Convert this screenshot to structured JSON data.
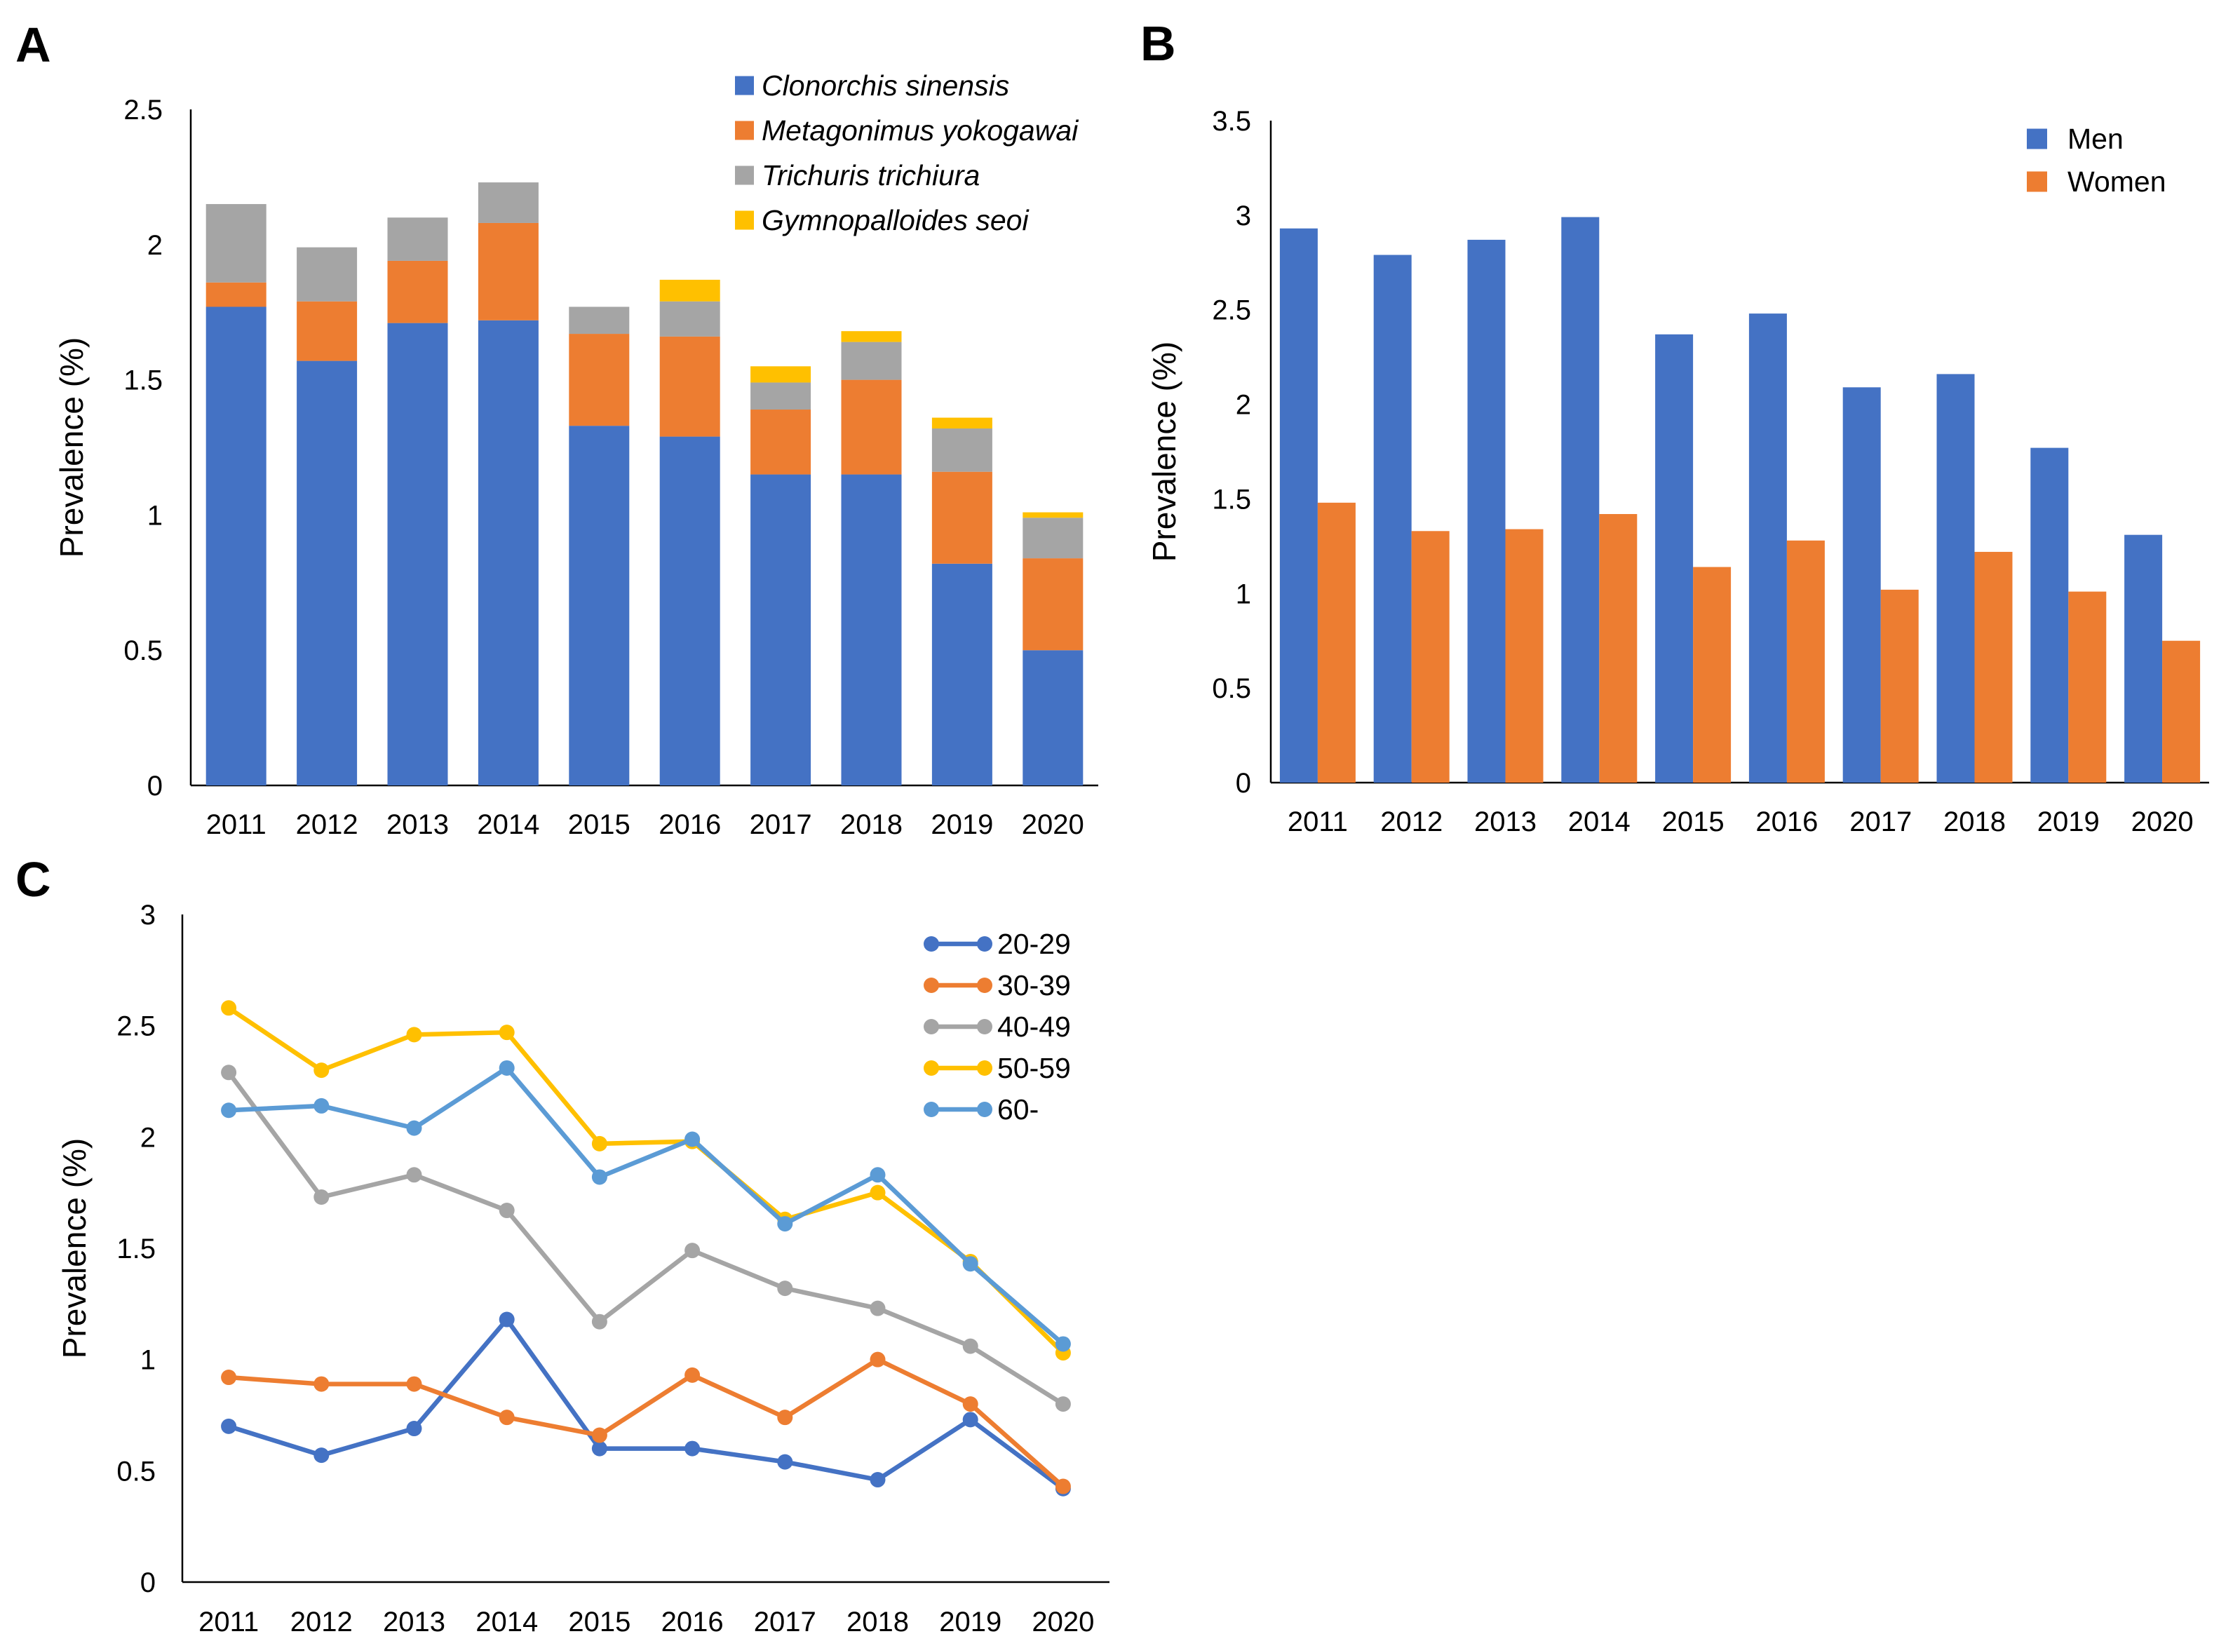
{
  "panels": {
    "A": {
      "label": "A"
    },
    "B": {
      "label": "B"
    },
    "C": {
      "label": "C"
    }
  },
  "colors": {
    "blue": "#4472C4",
    "orange": "#ED7D31",
    "gray": "#A5A5A5",
    "yellow": "#FFC000",
    "lightblue": "#5B9BD5"
  },
  "chart_data": [
    {
      "panel": "A",
      "type": "bar",
      "stacked": true,
      "categories": [
        "2011",
        "2012",
        "2013",
        "2014",
        "2015",
        "2016",
        "2017",
        "2018",
        "2019",
        "2020"
      ],
      "ylabel": "Prevalence (%)",
      "ylim": [
        0,
        2.5
      ],
      "yticks": [
        "0",
        "0.5",
        "1",
        "1.5",
        "2",
        "2.5"
      ],
      "legend_position": "top-right",
      "series": [
        {
          "name": "Clonorchis sinensis",
          "color": "#4472C4",
          "values": [
            1.77,
            1.57,
            1.71,
            1.72,
            1.33,
            1.29,
            1.15,
            1.15,
            0.82,
            0.5
          ]
        },
        {
          "name": "Metagonimus yokogawai",
          "color": "#ED7D31",
          "values": [
            0.09,
            0.22,
            0.23,
            0.36,
            0.34,
            0.37,
            0.24,
            0.35,
            0.34,
            0.34
          ]
        },
        {
          "name": "Trichuris trichiura",
          "color": "#A5A5A5",
          "values": [
            0.29,
            0.2,
            0.16,
            0.15,
            0.1,
            0.13,
            0.1,
            0.14,
            0.16,
            0.15
          ]
        },
        {
          "name": "Gymnopalloides seoi",
          "color": "#FFC000",
          "values": [
            0.0,
            0.0,
            0.0,
            0.0,
            0.0,
            0.08,
            0.06,
            0.04,
            0.04,
            0.02
          ]
        }
      ]
    },
    {
      "panel": "B",
      "type": "bar",
      "stacked": false,
      "categories": [
        "2011",
        "2012",
        "2013",
        "2014",
        "2015",
        "2016",
        "2017",
        "2018",
        "2019",
        "2020"
      ],
      "ylabel": "Prevalence (%)",
      "ylim": [
        0,
        3.5
      ],
      "yticks": [
        "0",
        "0.5",
        "1",
        "1.5",
        "2",
        "2.5",
        "3",
        "3.5"
      ],
      "legend_position": "top-right",
      "series": [
        {
          "name": "Men",
          "color": "#4472C4",
          "values": [
            2.93,
            2.79,
            2.87,
            2.99,
            2.37,
            2.48,
            2.09,
            2.16,
            1.77,
            1.31
          ]
        },
        {
          "name": "Women",
          "color": "#ED7D31",
          "values": [
            1.48,
            1.33,
            1.34,
            1.42,
            1.14,
            1.28,
            1.02,
            1.22,
            1.01,
            0.75
          ]
        }
      ]
    },
    {
      "panel": "C",
      "type": "line",
      "categories": [
        "2011",
        "2012",
        "2013",
        "2014",
        "2015",
        "2016",
        "2017",
        "2018",
        "2019",
        "2020"
      ],
      "ylabel": "Prevalence (%)",
      "ylim": [
        0,
        3
      ],
      "yticks": [
        "0",
        "0.5",
        "1",
        "1.5",
        "2",
        "2.5",
        "3"
      ],
      "legend_position": "top-right",
      "series": [
        {
          "name": "20-29",
          "color": "#4472C4",
          "values": [
            0.7,
            0.57,
            0.69,
            1.18,
            0.6,
            0.6,
            0.54,
            0.46,
            0.73,
            0.42
          ]
        },
        {
          "name": "30-39",
          "color": "#ED7D31",
          "values": [
            0.92,
            0.89,
            0.89,
            0.74,
            0.66,
            0.93,
            0.74,
            1.0,
            0.8,
            0.43
          ]
        },
        {
          "name": "40-49",
          "color": "#A5A5A5",
          "values": [
            2.29,
            1.73,
            1.83,
            1.67,
            1.17,
            1.49,
            1.32,
            1.23,
            1.06,
            0.8
          ]
        },
        {
          "name": "50-59",
          "color": "#FFC000",
          "values": [
            2.58,
            2.3,
            2.46,
            2.47,
            1.97,
            1.98,
            1.63,
            1.75,
            1.44,
            1.03
          ]
        },
        {
          "name": "60-",
          "color": "#5B9BD5",
          "values": [
            2.12,
            2.14,
            2.04,
            2.31,
            1.82,
            1.99,
            1.61,
            1.83,
            1.43,
            1.07
          ]
        }
      ]
    }
  ]
}
